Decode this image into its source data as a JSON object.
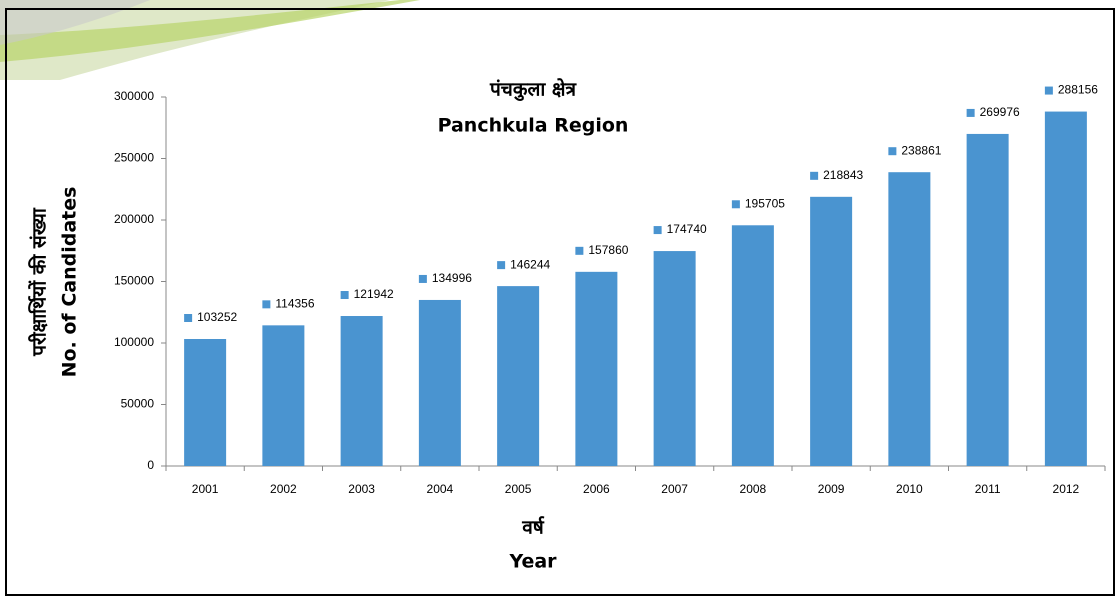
{
  "chart_data": {
    "type": "bar",
    "title": "पंचकुला क्षेत्र",
    "subtitle": "Panchkula Region",
    "ylabel": [
      "परीक्षार्थियों की संख्या",
      "No. of Candidates"
    ],
    "xlabel": [
      "वर्ष",
      "Year"
    ],
    "categories": [
      "2001",
      "2002",
      "2003",
      "2004",
      "2005",
      "2006",
      "2007",
      "2008",
      "2009",
      "2010",
      "2011",
      "2012"
    ],
    "values": [
      103252,
      114356,
      121942,
      134996,
      146244,
      157860,
      174740,
      195705,
      218843,
      238861,
      269976,
      288156
    ],
    "color": "#4a94d0",
    "ylim": [
      0,
      300000
    ],
    "yticks": [
      0,
      50000,
      100000,
      150000,
      200000,
      250000,
      300000
    ]
  }
}
